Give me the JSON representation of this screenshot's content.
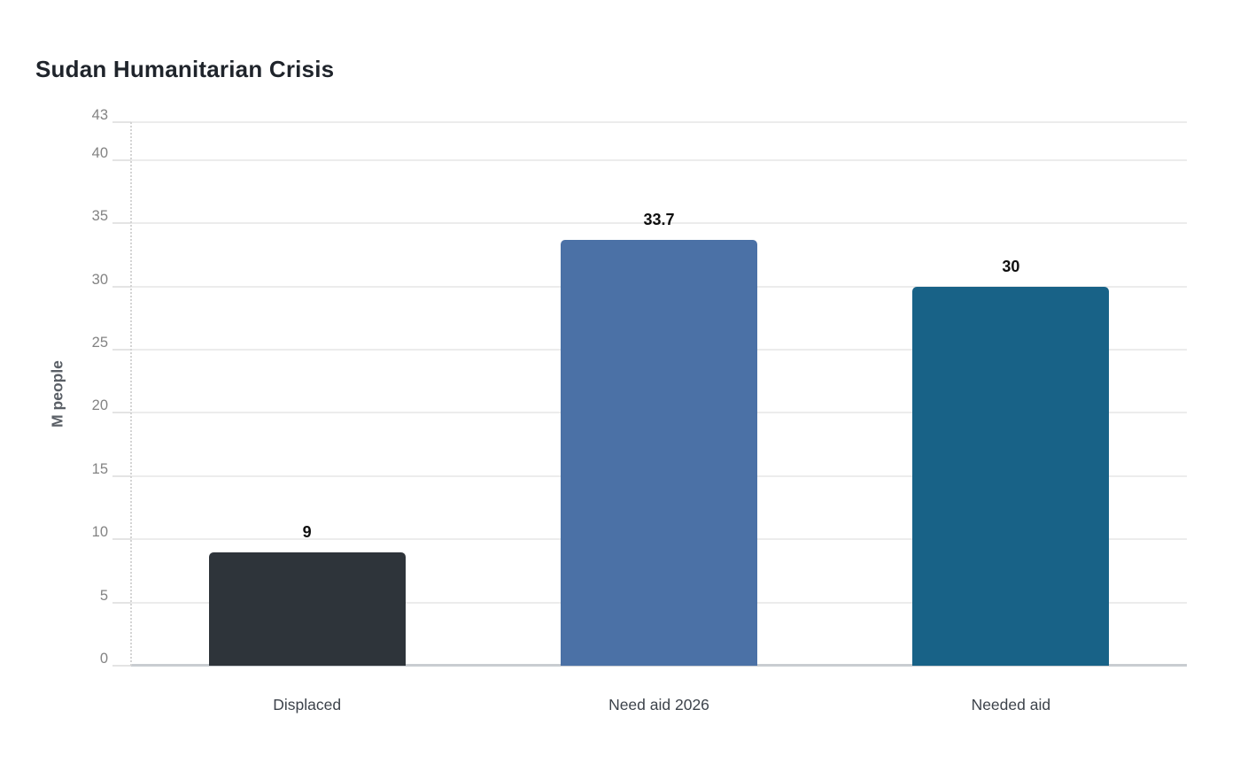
{
  "title": "Sudan Humanitarian Crisis",
  "chart_data": {
    "type": "bar",
    "title": "Sudan Humanitarian Crisis",
    "categories": [
      "Displaced",
      "Need aid 2026",
      "Needed aid"
    ],
    "values": [
      9,
      33.7,
      30
    ],
    "value_labels": [
      "9",
      "33.7",
      "30"
    ],
    "bar_colors": [
      "#2e343a",
      "#4b71a6",
      "#186287"
    ],
    "xlabel": "",
    "ylabel": "M people",
    "ylim": [
      0,
      43
    ],
    "yticks": [
      0,
      5,
      10,
      15,
      20,
      25,
      30,
      35,
      40,
      43
    ],
    "grid": true,
    "legend": false
  },
  "colors": {
    "background": "#ffffff",
    "grid": "#ececec",
    "zero_line": "#c9cdd1",
    "axis_dotted": "#d4d4d4",
    "tick_label": "#838383",
    "axis_title": "#5a5f66",
    "value_label": "#0f0f0f",
    "category_label": "#3d434b",
    "title": "#1f242b"
  }
}
